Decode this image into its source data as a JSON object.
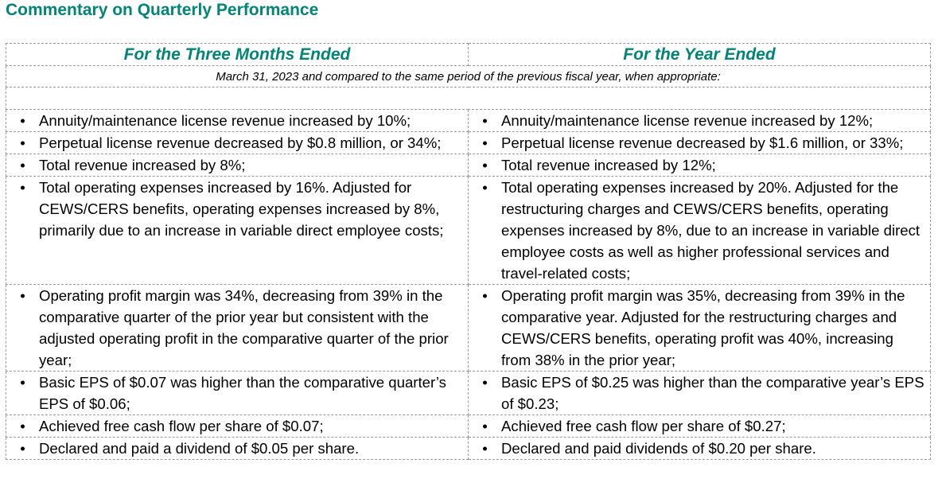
{
  "title": "Commentary on Quarterly Performance",
  "table": {
    "col_headers": [
      "For the Three Months Ended",
      "For the Year Ended"
    ],
    "subheader": "March 31, 2023 and compared to the same period of the previous fiscal year, when appropriate:",
    "bullet_glyph": "•",
    "rows": [
      [
        "Annuity/maintenance license revenue increased by 10%;",
        "Annuity/maintenance license revenue increased by 12%;"
      ],
      [
        "Perpetual license revenue decreased by $0.8 million, or 34%;",
        "Perpetual license revenue decreased by $1.6 million, or 33%;"
      ],
      [
        "Total revenue increased by 8%;",
        "Total revenue increased by 12%;"
      ],
      [
        "Total operating expenses increased by 16%. Adjusted for CEWS/CERS benefits, operating expenses increased by 8%, primarily due to an increase in variable direct employee costs;",
        "Total operating expenses increased by 20%. Adjusted for the restructuring charges and CEWS/CERS benefits, operating expenses increased by 8%, due to an increase in variable direct employee costs as well as higher professional services and travel-related costs;"
      ],
      [
        "Operating profit margin was 34%, decreasing from 39% in the comparative quarter of the prior year but consistent with the adjusted operating profit in the comparative quarter of the prior year;",
        "Operating profit margin was 35%, decreasing from 39% in the comparative year. Adjusted for the restructuring charges and CEWS/CERS benefits, operating profit was 40%, increasing from 38% in the prior year;"
      ],
      [
        "Basic EPS of $0.07 was higher than the comparative quarter’s EPS of $0.06;",
        "Basic EPS of $0.25 was higher than the comparative year’s EPS of $0.23;"
      ],
      [
        "Achieved free cash flow per share of $0.07;",
        "Achieved free cash flow per share of $0.27;"
      ],
      [
        "Declared and paid a dividend of $0.05 per share.",
        "Declared and paid dividends of $0.20 per share."
      ]
    ]
  }
}
